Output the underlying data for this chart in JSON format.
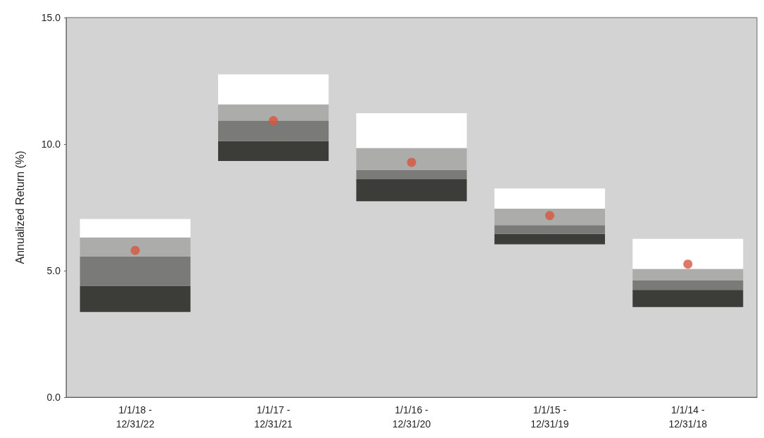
{
  "chart_data": {
    "type": "bar",
    "ylabel": "Annualized Return (%)",
    "categories": [
      "1/1/18 -\n12/31/22",
      "1/1/17 -\n12/31/21",
      "1/1/16 -\n12/31/20",
      "1/1/15 -\n12/31/19",
      "1/1/14 -\n12/31/18"
    ],
    "series": [
      {
        "color": "#3c3c38",
        "base": [
          3.37,
          9.33,
          7.74,
          6.04,
          3.56
        ],
        "values": [
          1.03,
          0.79,
          0.87,
          0.41,
          0.68
        ]
      },
      {
        "color": "#7a7a78",
        "base": [
          4.4,
          10.12,
          8.61,
          6.45,
          4.24
        ],
        "values": [
          1.16,
          0.81,
          0.37,
          0.35,
          0.37
        ]
      },
      {
        "color": "#acacaa",
        "base": [
          5.56,
          10.93,
          8.98,
          6.8,
          4.61
        ],
        "values": [
          0.75,
          0.64,
          0.87,
          0.65,
          0.46
        ]
      },
      {
        "color": "#ffffff",
        "base": [
          6.31,
          11.57,
          9.85,
          7.45,
          5.07
        ],
        "values": [
          0.73,
          1.19,
          1.37,
          0.8,
          1.19
        ]
      },
      {
        "type": "scatter",
        "color": "#d9553f",
        "marker": "circle",
        "x": [
          "1/1/18 -\n12/31/22",
          "1/1/17 -\n12/31/21",
          "1/1/16 -\n12/31/20",
          "1/1/15 -\n12/31/19",
          "1/1/14 -\n12/31/18"
        ],
        "values": [
          5.8,
          10.93,
          9.28,
          7.18,
          5.26
        ]
      }
    ],
    "ylim": [
      0,
      15
    ],
    "yticks": [
      {
        "value": 0,
        "label": "0.0"
      },
      {
        "value": 5,
        "label": "5.0"
      },
      {
        "value": 10,
        "label": "10.0"
      },
      {
        "value": 15,
        "label": "15.0"
      }
    ]
  }
}
